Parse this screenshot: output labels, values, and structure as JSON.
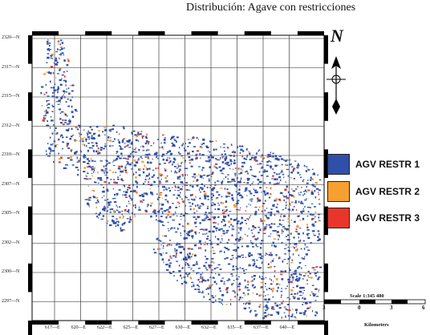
{
  "title": "Distribución: Agave con restricciones",
  "map": {
    "y_ticks": [
      "2320",
      "2317",
      "2315",
      "2312",
      "2310",
      "2307",
      "2305",
      "2302",
      "2300",
      "2297"
    ],
    "y_suffix": "N",
    "x_ticks": [
      "617",
      "620",
      "622",
      "625",
      "627",
      "630",
      "632",
      "635",
      "637",
      "640"
    ],
    "x_suffix": "E"
  },
  "north_arrow": {
    "letter": "N"
  },
  "legend": [
    {
      "label": "AGV RESTR 1",
      "color": "#2f4fa8"
    },
    {
      "label": "AGV RESTR 2",
      "color": "#f5a030"
    },
    {
      "label": "AGV RESTR 3",
      "color": "#e8372a"
    }
  ],
  "scale_bar": {
    "text": "Scale 1:345 480",
    "labels": [
      "3",
      "0",
      "3",
      "6"
    ],
    "units": "Kilometers"
  }
}
